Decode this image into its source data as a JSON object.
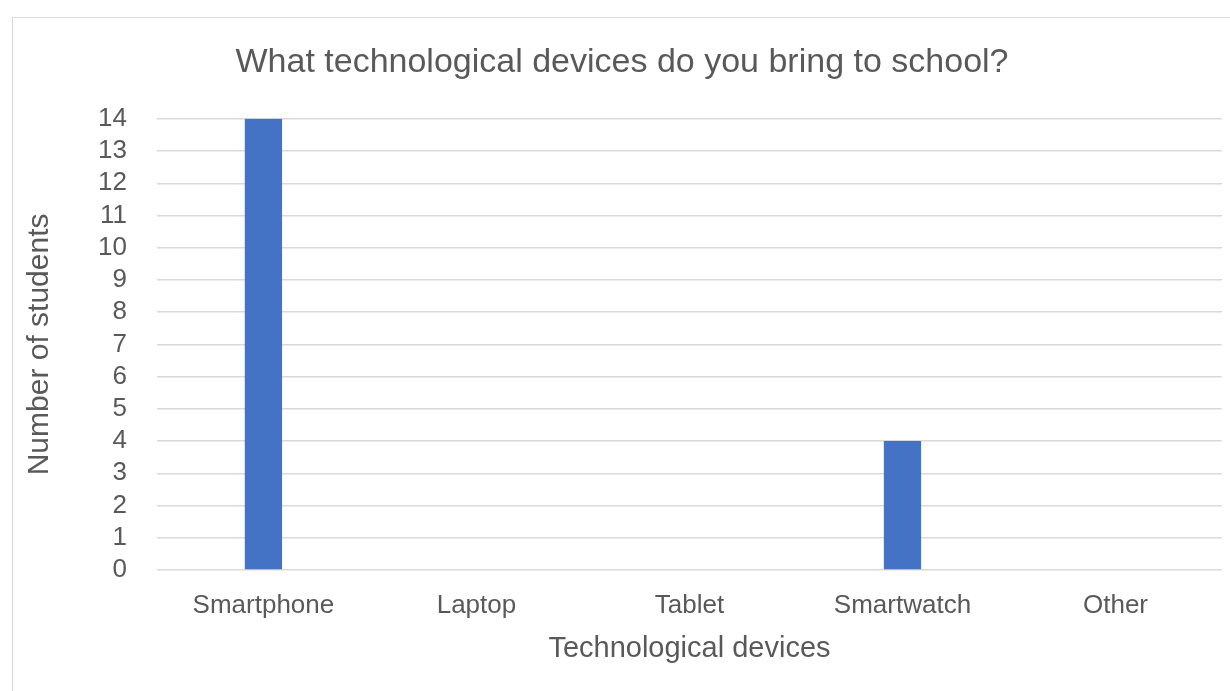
{
  "chart_data": {
    "type": "bar",
    "title": "What technological devices do you bring to school?",
    "xlabel": "Technological devices",
    "ylabel": "Number of students",
    "categories": [
      "Smartphone",
      "Laptop",
      "Tablet",
      "Smartwatch",
      "Other"
    ],
    "values": [
      14,
      0,
      0,
      4,
      0
    ],
    "color": "#4472c4",
    "ylim": [
      0,
      14
    ],
    "yticks": [
      0,
      1,
      2,
      3,
      4,
      5,
      6,
      7,
      8,
      9,
      10,
      11,
      12,
      13,
      14
    ],
    "grid": "y",
    "legend": false
  }
}
